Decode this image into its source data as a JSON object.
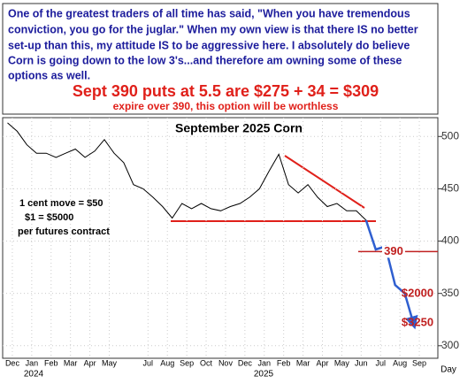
{
  "chart_data": {
    "type": "line",
    "quote": [
      "One of the greatest traders of all time has said, \"When you have tremendous",
      "conviction, you go for the juglar.\" When my own view is that there IS no better",
      "set-up than this, my attitude IS to be aggressive here. I absolutely do believe",
      "Corn is going down to the low 3's...and therefore am owning some of these",
      "options as well."
    ],
    "headline": "Sept 390 puts at 5.5 are $275 + 34 = $309",
    "subheadline": "expire over 390, this option will be worthless",
    "title": "September 2025 Corn",
    "notes": [
      "1 cent move = $50",
      "$1 = $5000",
      "per futures contract"
    ],
    "x_label": "Day",
    "year_labels": [
      "2024",
      "2025"
    ],
    "categories": [
      "Dec",
      null,
      "Jan",
      null,
      "Feb",
      null,
      "Mar",
      null,
      "Apr",
      null,
      "May",
      null,
      null,
      null,
      "Jul",
      null,
      "Aug",
      null,
      "Sep",
      null,
      "Oct",
      null,
      "Nov",
      null,
      "Dec",
      null,
      "Jan",
      null,
      "Feb",
      null,
      "Mar",
      null,
      "Apr",
      null,
      "May",
      null,
      "Jun",
      null,
      "Jul",
      null,
      "Aug",
      null,
      "Sep",
      null
    ],
    "series": [
      {
        "color": "#000000",
        "values": [
          513,
          505,
          492,
          484,
          484,
          480,
          484,
          488,
          480,
          486,
          497,
          484,
          475,
          454,
          450,
          442,
          433,
          422,
          436,
          431,
          436,
          431,
          429,
          433,
          436,
          442,
          450,
          467,
          483,
          454,
          446,
          454,
          442,
          433,
          436,
          429,
          429,
          420,
          null,
          null,
          null,
          null,
          null,
          null
        ]
      },
      {
        "color": "#2f5fd0",
        "values": [
          null,
          null,
          null,
          null,
          null,
          null,
          null,
          null,
          null,
          null,
          null,
          null,
          null,
          null,
          null,
          null,
          null,
          null,
          null,
          null,
          null,
          null,
          null,
          null,
          null,
          null,
          null,
          null,
          null,
          null,
          null,
          null,
          null,
          null,
          null,
          null,
          null,
          420,
          392,
          395,
          358,
          350,
          318,
          null
        ]
      }
    ],
    "annotations": [
      {
        "text": "390",
        "value": 390
      },
      {
        "text": "$2000"
      },
      {
        "text": "$3250"
      }
    ],
    "ylim": [
      288,
      518
    ],
    "yticks": [
      300,
      350,
      400,
      450,
      500
    ],
    "grid": true
  }
}
